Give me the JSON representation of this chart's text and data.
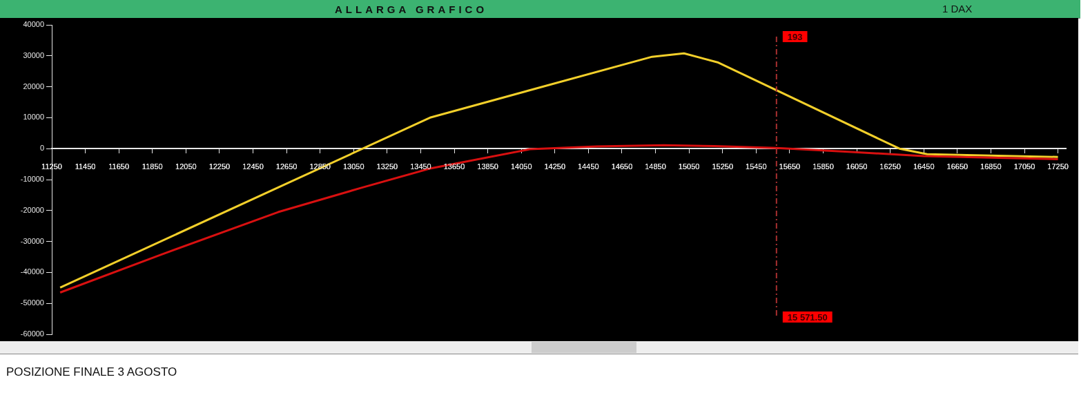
{
  "chart_data": {
    "type": "line",
    "title": "ALLARGA GRAFICO",
    "subtitle": "1 DAX",
    "xlim": [
      11250,
      17300
    ],
    "xticks": [
      11250,
      11450,
      11650,
      11850,
      12050,
      12250,
      12450,
      12650,
      12850,
      13050,
      13250,
      13450,
      13650,
      13850,
      14050,
      14250,
      14450,
      14650,
      14850,
      15050,
      15250,
      15450,
      15650,
      15850,
      16050,
      16250,
      16450,
      16650,
      16850,
      17050,
      17250
    ],
    "ylim": [
      -60000,
      40000
    ],
    "yticks": [
      -60000,
      -50000,
      -40000,
      -30000,
      -20000,
      -10000,
      0,
      10000,
      20000,
      30000,
      40000
    ],
    "grid": false,
    "legend": false,
    "marker": "none",
    "line_style": "solid",
    "series": [
      {
        "color": "#d81010",
        "x": [
          11300,
          11900,
          12600,
          13100,
          13500,
          14100,
          14500,
          14900,
          15200,
          15571.5,
          16000,
          16450,
          16850,
          17250
        ],
        "values": [
          -46500,
          -34300,
          -20500,
          -12600,
          -6500,
          -200,
          700,
          1100,
          800,
          193,
          -1000,
          -2400,
          -2900,
          -3400
        ]
      },
      {
        "color": "#f2cf2a",
        "x": [
          11300,
          13510,
          14830,
          15020,
          15220,
          16305,
          16470,
          17250
        ],
        "values": [
          -44900,
          10100,
          29700,
          30800,
          27900,
          0,
          -1800,
          -2700
        ]
      }
    ],
    "ref_lines": [
      {
        "axis": "x",
        "value": 15571.5,
        "label": "15 571.50",
        "color": "#a83030",
        "line_style": "dashdot"
      }
    ],
    "annotations": [
      "193",
      "POSIZIONE FINALE 3 AGOSTO"
    ]
  }
}
